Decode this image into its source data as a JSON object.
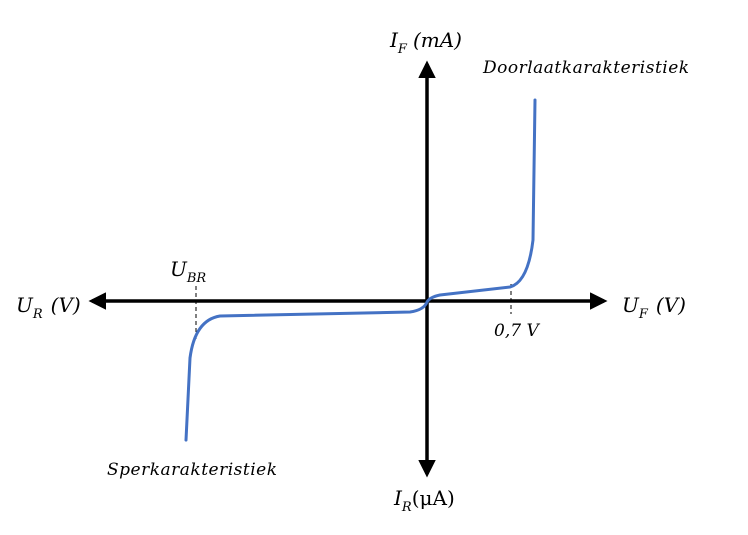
{
  "axes": {
    "if_main": "I",
    "if_sub": "F",
    "if_unit": "(mA)",
    "ir_main": "I",
    "ir_sub": "R",
    "ir_unit": "(μA)",
    "uf_main": "U",
    "uf_sub": "F",
    "uf_unit": "(V)",
    "ur_main": "U",
    "ur_sub": "R",
    "ur_unit": "(V)"
  },
  "markers": {
    "ubr_main": "U",
    "ubr_sub": "BR",
    "knee_voltage": "0,7 V"
  },
  "captions": {
    "forward": "Doorlaatkarakteristiek",
    "reverse": "Sperkarakteristiek"
  },
  "colors": {
    "curve": "#4472C4",
    "axis": "#000000"
  }
}
